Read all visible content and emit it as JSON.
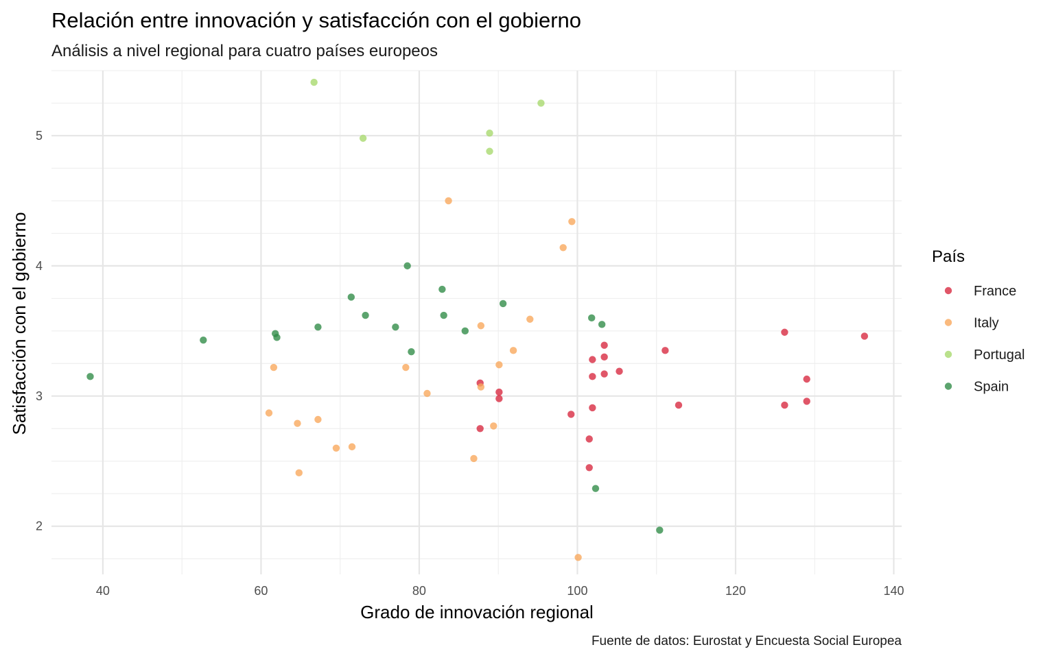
{
  "chart_data": {
    "type": "scatter",
    "title": "Relación entre innovación y satisfacción con el gobierno",
    "subtitle": "Análisis a nivel regional para cuatro países europeos",
    "xlabel": "Grado de innovación regional",
    "ylabel": "Satisfacción con el gobierno",
    "caption": "Fuente de datos: Eurostat y Encuesta Social Europea",
    "xlim": [
      33.5,
      141.0
    ],
    "ylim": [
      1.63,
      5.5
    ],
    "x_ticks": [
      40,
      60,
      80,
      100,
      120,
      140
    ],
    "y_ticks": [
      2,
      3,
      4,
      5
    ],
    "grid": true,
    "legend": {
      "title": "País",
      "position": "right"
    },
    "series": [
      {
        "name": "France",
        "color": "#D7263D",
        "points": [
          [
            87.7,
            3.1
          ],
          [
            90.1,
            3.03
          ],
          [
            90.1,
            2.98
          ],
          [
            87.7,
            2.75
          ],
          [
            99.2,
            2.86
          ],
          [
            101.5,
            2.67
          ],
          [
            101.5,
            2.45
          ],
          [
            101.9,
            2.91
          ],
          [
            101.9,
            3.15
          ],
          [
            101.9,
            3.28
          ],
          [
            103.4,
            3.39
          ],
          [
            103.4,
            3.3
          ],
          [
            103.4,
            3.17
          ],
          [
            105.3,
            3.19
          ],
          [
            111.1,
            3.35
          ],
          [
            112.8,
            2.93
          ],
          [
            126.2,
            3.49
          ],
          [
            126.2,
            2.93
          ],
          [
            129.0,
            3.13
          ],
          [
            129.0,
            2.96
          ],
          [
            136.3,
            3.46
          ]
        ]
      },
      {
        "name": "Italy",
        "color": "#F9A65A",
        "points": [
          [
            83.7,
            4.5
          ],
          [
            99.3,
            4.34
          ],
          [
            98.2,
            4.14
          ],
          [
            94.0,
            3.59
          ],
          [
            87.8,
            3.54
          ],
          [
            91.9,
            3.35
          ],
          [
            90.1,
            3.24
          ],
          [
            78.3,
            3.22
          ],
          [
            61.6,
            3.22
          ],
          [
            87.8,
            3.07
          ],
          [
            81.0,
            3.02
          ],
          [
            61.0,
            2.87
          ],
          [
            67.2,
            2.82
          ],
          [
            64.6,
            2.79
          ],
          [
            89.4,
            2.77
          ],
          [
            71.5,
            2.61
          ],
          [
            69.5,
            2.6
          ],
          [
            86.9,
            2.52
          ],
          [
            64.8,
            2.41
          ],
          [
            100.1,
            1.76
          ]
        ]
      },
      {
        "name": "Portugal",
        "color": "#A7D86B",
        "points": [
          [
            66.7,
            5.41
          ],
          [
            95.4,
            5.25
          ],
          [
            72.9,
            4.98
          ],
          [
            88.9,
            5.02
          ],
          [
            88.9,
            4.88
          ]
        ]
      },
      {
        "name": "Spain",
        "color": "#2E8B45",
        "points": [
          [
            78.5,
            4.0
          ],
          [
            82.9,
            3.82
          ],
          [
            71.4,
            3.76
          ],
          [
            90.6,
            3.71
          ],
          [
            73.2,
            3.62
          ],
          [
            83.1,
            3.62
          ],
          [
            101.8,
            3.6
          ],
          [
            103.1,
            3.55
          ],
          [
            67.2,
            3.53
          ],
          [
            77.0,
            3.53
          ],
          [
            85.8,
            3.5
          ],
          [
            61.8,
            3.48
          ],
          [
            62.0,
            3.45
          ],
          [
            52.7,
            3.43
          ],
          [
            79.0,
            3.34
          ],
          [
            38.4,
            3.15
          ],
          [
            102.3,
            2.29
          ],
          [
            110.4,
            1.97
          ]
        ]
      }
    ]
  }
}
